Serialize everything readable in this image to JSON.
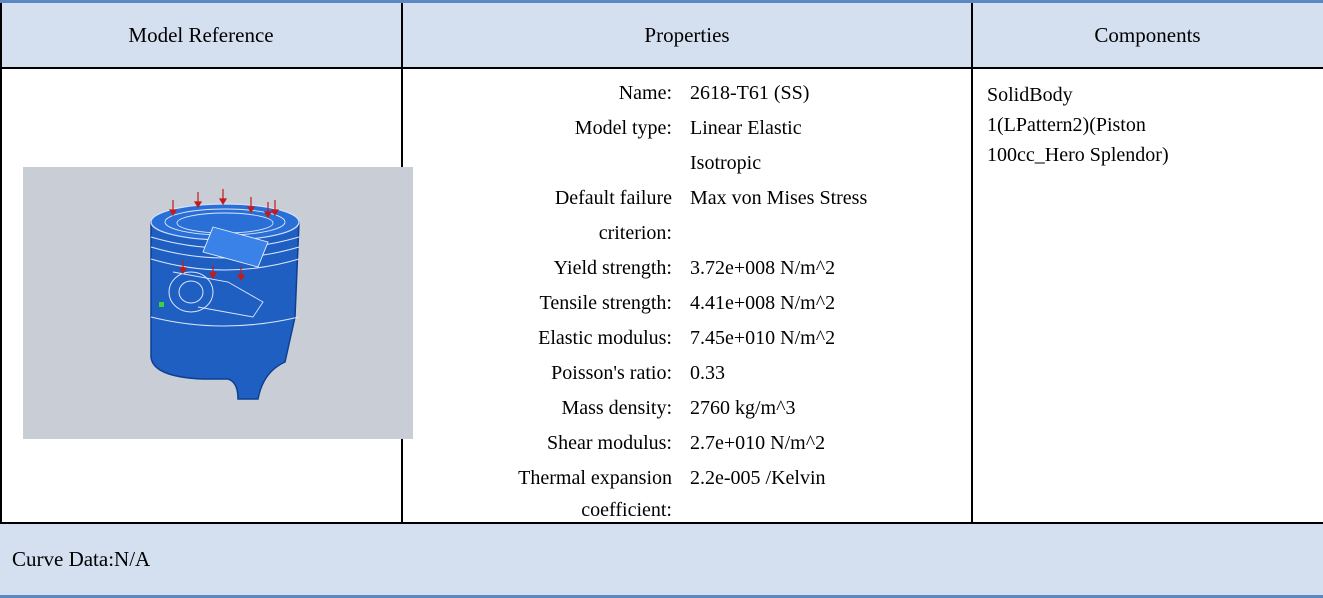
{
  "header": {
    "model_reference": "Model Reference",
    "properties": "Properties",
    "components": "Components"
  },
  "properties": {
    "name_label": "Name:",
    "name_value": "2618-T61 (SS)",
    "model_type_label": "Model type:",
    "model_type_value_line1": "Linear Elastic",
    "model_type_value_line2": "Isotropic",
    "failure_label_line1": "Default failure",
    "failure_label_line2": "criterion:",
    "failure_value": "Max von Mises Stress",
    "yield_label": "Yield strength:",
    "yield_value": "3.72e+008 N/m^2",
    "tensile_label": "Tensile strength:",
    "tensile_value": "4.41e+008 N/m^2",
    "elastic_label": "Elastic modulus:",
    "elastic_value": "7.45e+010 N/m^2",
    "poisson_label": "Poisson's ratio:",
    "poisson_value": "0.33",
    "density_label": "Mass density:",
    "density_value": "2760 kg/m^3",
    "shear_label": "Shear modulus:",
    "shear_value": "2.7e+010 N/m^2",
    "thermal_label_line1": "Thermal expansion",
    "thermal_label_line2": "coefficient:",
    "thermal_value": "2.2e-005 /Kelvin"
  },
  "components": {
    "line1": "SolidBody",
    "line2": "1(LPattern2)(Piston",
    "line3": "100cc_Hero Splendor)"
  },
  "footer": {
    "curve_data": "Curve Data:N/A"
  },
  "colors": {
    "header_bg": "#d4dff0",
    "rule": "#5b87c4",
    "model_blue": "#1f5fc2"
  }
}
